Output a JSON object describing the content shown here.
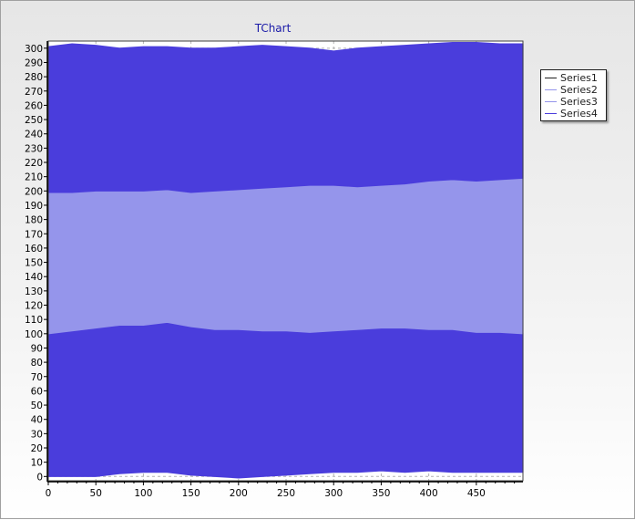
{
  "chart_data": {
    "type": "area",
    "title": "TChart",
    "xlabel": "",
    "ylabel": "",
    "xlim": [
      0,
      499
    ],
    "ylim": [
      -3,
      305
    ],
    "x_ticks": [
      0,
      50,
      100,
      150,
      200,
      250,
      300,
      350,
      400,
      450
    ],
    "y_ticks": [
      0,
      10,
      20,
      30,
      40,
      50,
      60,
      70,
      80,
      90,
      100,
      110,
      120,
      130,
      140,
      150,
      160,
      170,
      180,
      190,
      200,
      210,
      220,
      230,
      240,
      250,
      260,
      270,
      280,
      290,
      300
    ],
    "grid": true,
    "legend_position": "right",
    "x": [
      0,
      25,
      50,
      75,
      100,
      125,
      150,
      175,
      200,
      225,
      250,
      275,
      300,
      325,
      350,
      375,
      400,
      425,
      450,
      475,
      499
    ],
    "series": [
      {
        "name": "Series1",
        "color": "#4a3ddc",
        "lower": [
          0,
          0,
          0,
          2,
          3,
          3,
          1,
          0,
          -1,
          0,
          1,
          2,
          3,
          3,
          4,
          3,
          4,
          3,
          3,
          3,
          3
        ],
        "upper": [
          100,
          102,
          104,
          106,
          106,
          108,
          105,
          103,
          103,
          102,
          102,
          101,
          102,
          103,
          104,
          104,
          103,
          103,
          101,
          101,
          100
        ]
      },
      {
        "name": "Series2",
        "color": "#9595eb",
        "lower": [
          100,
          102,
          104,
          106,
          106,
          108,
          105,
          103,
          103,
          102,
          102,
          101,
          102,
          103,
          104,
          104,
          103,
          103,
          101,
          101,
          100
        ],
        "upper": [
          199,
          199,
          200,
          200,
          200,
          201,
          199,
          200,
          201,
          202,
          203,
          204,
          204,
          203,
          204,
          205,
          207,
          208,
          207,
          208,
          209
        ]
      },
      {
        "name": "Series3",
        "color": "#9595eb",
        "lower": [
          199,
          199,
          200,
          200,
          200,
          201,
          199,
          200,
          201,
          202,
          203,
          204,
          204,
          203,
          204,
          205,
          207,
          208,
          207,
          208,
          209
        ],
        "upper": [
          199,
          199,
          200,
          200,
          200,
          201,
          199,
          200,
          201,
          202,
          203,
          204,
          204,
          203,
          204,
          205,
          207,
          208,
          207,
          208,
          209
        ]
      },
      {
        "name": "Series4",
        "color": "#4a3ddc",
        "lower": [
          199,
          199,
          200,
          200,
          200,
          201,
          199,
          200,
          201,
          202,
          203,
          204,
          204,
          203,
          204,
          205,
          207,
          208,
          207,
          208,
          209
        ],
        "upper": [
          301,
          303,
          302,
          300,
          301,
          301,
          300,
          300,
          301,
          302,
          301,
          300,
          298,
          300,
          301,
          302,
          303,
          304,
          304,
          303,
          303
        ]
      }
    ]
  }
}
